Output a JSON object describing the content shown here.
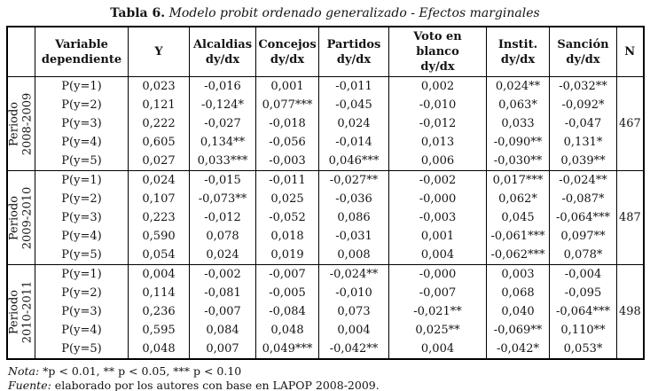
{
  "title": {
    "label": "Tabla 6.",
    "subtitle": "Modelo probit ordenado generalizado - Efectos marginales"
  },
  "table": {
    "columns": [
      {
        "line1": "Variable",
        "line2": "dependiente"
      },
      {
        "line1": "Y",
        "line2": ""
      },
      {
        "line1": "Alcaldias",
        "line2": "dy/dx"
      },
      {
        "line1": "Concejos",
        "line2": "dy/dx"
      },
      {
        "line1": "Partidos",
        "line2": "dy/dx"
      },
      {
        "line1": "Voto en blanco",
        "line2": "dy/dx"
      },
      {
        "line1": "Instit.",
        "line2": "dy/dx"
      },
      {
        "line1": "Sanción",
        "line2": "dy/dx"
      },
      {
        "line1": "N",
        "line2": ""
      }
    ],
    "blocks": [
      {
        "period_line1": "Periodo",
        "period_line2": "2008-2009",
        "n": "467",
        "rows": [
          {
            "var": "P(y=1)",
            "y": "0,023",
            "alcaldias": "-0,016",
            "concejos": "0,001",
            "partidos": "-0,011",
            "voto": "0,002",
            "instit": "0,024**",
            "sancion": "-0,032**"
          },
          {
            "var": "P(y=2)",
            "y": "0,121",
            "alcaldias": "-0,124*",
            "concejos": "0,077***",
            "partidos": "-0,045",
            "voto": "-0,010",
            "instit": "0,063*",
            "sancion": "-0,092*"
          },
          {
            "var": "P(y=3)",
            "y": "0,222",
            "alcaldias": "-0,027",
            "concejos": "-0,018",
            "partidos": "0,024",
            "voto": "-0,012",
            "instit": "0,033",
            "sancion": "-0,047"
          },
          {
            "var": "P(y=4)",
            "y": "0,605",
            "alcaldias": "0,134**",
            "concejos": "-0,056",
            "partidos": "-0,014",
            "voto": "0,013",
            "instit": "-0,090**",
            "sancion": "0,131*"
          },
          {
            "var": "P(y=5)",
            "y": "0,027",
            "alcaldias": "0,033***",
            "concejos": "-0,003",
            "partidos": "0,046***",
            "voto": "0,006",
            "instit": "-0,030**",
            "sancion": "0,039**"
          }
        ]
      },
      {
        "period_line1": "Periodo",
        "period_line2": "2009-2010",
        "n": "487",
        "rows": [
          {
            "var": "P(y=1)",
            "y": "0,024",
            "alcaldias": "-0,015",
            "concejos": "-0,011",
            "partidos": "-0,027**",
            "voto": "-0,002",
            "instit": "0,017***",
            "sancion": "-0,024**"
          },
          {
            "var": "P(y=2)",
            "y": "0,107",
            "alcaldias": "-0,073**",
            "concejos": "0,025",
            "partidos": "-0,036",
            "voto": "-0,000",
            "instit": "0,062*",
            "sancion": "-0,087*"
          },
          {
            "var": "P(y=3)",
            "y": "0,223",
            "alcaldias": "-0,012",
            "concejos": "-0,052",
            "partidos": "0,086",
            "voto": "-0,003",
            "instit": "0,045",
            "sancion": "-0,064***"
          },
          {
            "var": "P(y=4)",
            "y": "0,590",
            "alcaldias": "0,078",
            "concejos": "0,018",
            "partidos": "-0,031",
            "voto": "0,001",
            "instit": "-0,061***",
            "sancion": "0,097**"
          },
          {
            "var": "P(y=5)",
            "y": "0,054",
            "alcaldias": "0,024",
            "concejos": "0,019",
            "partidos": "0,008",
            "voto": "0,004",
            "instit": "-0,062***",
            "sancion": "0,078*"
          }
        ]
      },
      {
        "period_line1": "Periodo",
        "period_line2": "2010-2011",
        "n": "498",
        "rows": [
          {
            "var": "P(y=1)",
            "y": "0,004",
            "alcaldias": "-0,002",
            "concejos": "-0,007",
            "partidos": "-0,024**",
            "voto": "-0,000",
            "instit": "0,003",
            "sancion": "-0,004"
          },
          {
            "var": "P(y=2)",
            "y": "0,114",
            "alcaldias": "-0,081",
            "concejos": "-0,005",
            "partidos": "-0,010",
            "voto": "-0,007",
            "instit": "0,068",
            "sancion": "-0,095"
          },
          {
            "var": "P(y=3)",
            "y": "0,236",
            "alcaldias": "-0,007",
            "concejos": "-0,084",
            "partidos": "0,073",
            "voto": "-0,021**",
            "instit": "0,040",
            "sancion": "-0,064***"
          },
          {
            "var": "P(y=4)",
            "y": "0,595",
            "alcaldias": "0,084",
            "concejos": "0,048",
            "partidos": "0,004",
            "voto": "0,025**",
            "instit": "-0,069**",
            "sancion": "0,110**"
          },
          {
            "var": "P(y=5)",
            "y": "0,048",
            "alcaldias": "0,007",
            "concejos": "0,049***",
            "partidos": "-0,042**",
            "voto": "0,004",
            "instit": "-0,042*",
            "sancion": "0,053*"
          }
        ]
      }
    ]
  },
  "notes": {
    "nota_label": "Nota:",
    "nota_text": "*p < 0.01, ** p < 0.05, *** p < 0.10",
    "fuente_label": "Fuente:",
    "fuente_text": "elaborado por los autores con base en LAPOP 2008-2009."
  }
}
